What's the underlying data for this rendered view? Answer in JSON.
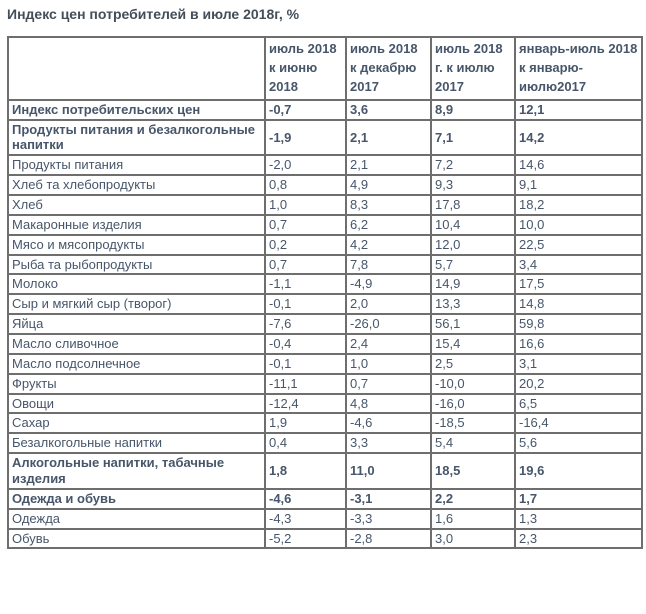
{
  "page_title": "Индекс цен потребителей в июле 2018г, %",
  "colors": {
    "background": "#ffffff",
    "title_text": "#434e59",
    "table_text": "#47566a",
    "border_outer": "#4c4c4c",
    "border_inner": "#6e6e6e"
  },
  "chart_data": {
    "type": "table",
    "title": "Индекс цен потребителей в июле 2018г, %",
    "columns": [
      "",
      "июль 2018 к июню 2018",
      "июль 2018 к декабрю 2017",
      "июль 2018 г. к июлю 2017",
      "январь-июль 2018 к январю-июлю2017"
    ],
    "rows": [
      {
        "label": "Индекс потребительских цен",
        "bold": true,
        "values": [
          "-0,7",
          "3,6",
          "8,9",
          "12,1"
        ]
      },
      {
        "label": "Продукты питания и безалкогольные напитки",
        "bold": true,
        "values": [
          "-1,9",
          "2,1",
          "7,1",
          "14,2"
        ]
      },
      {
        "label": "Продукты питания",
        "bold": false,
        "values": [
          "-2,0",
          "2,1",
          "7,2",
          "14,6"
        ]
      },
      {
        "label": "Хлеб та хлебопродукты",
        "bold": false,
        "values": [
          "0,8",
          "4,9",
          "9,3",
          "9,1"
        ]
      },
      {
        "label": "Хлеб",
        "bold": false,
        "values": [
          "1,0",
          "8,3",
          "17,8",
          "18,2"
        ]
      },
      {
        "label": "Макаронные изделия",
        "bold": false,
        "values": [
          "0,7",
          "6,2",
          "10,4",
          "10,0"
        ]
      },
      {
        "label": "Мясо и мясопродукты",
        "bold": false,
        "values": [
          "0,2",
          "4,2",
          "12,0",
          "22,5"
        ]
      },
      {
        "label": "Рыба та рыбопродукты",
        "bold": false,
        "values": [
          "0,7",
          "7,8",
          "5,7",
          "3,4"
        ]
      },
      {
        "label": "Молоко",
        "bold": false,
        "values": [
          "-1,1",
          "-4,9",
          "14,9",
          "17,5"
        ]
      },
      {
        "label": "Сыр и мягкий сыр (творог)",
        "bold": false,
        "values": [
          "-0,1",
          "2,0",
          "13,3",
          "14,8"
        ]
      },
      {
        "label": "Яйца",
        "bold": false,
        "values": [
          "-7,6",
          "-26,0",
          "56,1",
          "59,8"
        ]
      },
      {
        "label": "Масло сливочное",
        "bold": false,
        "values": [
          "-0,4",
          "2,4",
          "15,4",
          "16,6"
        ]
      },
      {
        "label": "Масло подсолнечное",
        "bold": false,
        "values": [
          "-0,1",
          "1,0",
          "2,5",
          "3,1"
        ]
      },
      {
        "label": "Фрукты",
        "bold": false,
        "values": [
          "-11,1",
          "0,7",
          "-10,0",
          "20,2"
        ]
      },
      {
        "label": "Овощи",
        "bold": false,
        "values": [
          "-12,4",
          "4,8",
          "-16,0",
          "6,5"
        ]
      },
      {
        "label": "Сахар",
        "bold": false,
        "values": [
          "1,9",
          "-4,6",
          "-18,5",
          "-16,4"
        ]
      },
      {
        "label": "Безалкогольные напитки",
        "bold": false,
        "values": [
          "0,4",
          "3,3",
          "5,4",
          "5,6"
        ]
      },
      {
        "label": "Алкогольные напитки, табачные изделия",
        "bold": true,
        "values": [
          "1,8",
          "11,0",
          "18,5",
          "19,6"
        ]
      },
      {
        "label": "Одежда и обувь",
        "bold": true,
        "values": [
          "-4,6",
          "-3,1",
          "2,2",
          "1,7"
        ]
      },
      {
        "label": "Одежда",
        "bold": false,
        "values": [
          "-4,3",
          "-3,3",
          "1,6",
          "1,3"
        ]
      },
      {
        "label": "Обувь",
        "bold": false,
        "values": [
          "-5,2",
          "-2,8",
          "3,0",
          "2,3"
        ]
      }
    ]
  }
}
